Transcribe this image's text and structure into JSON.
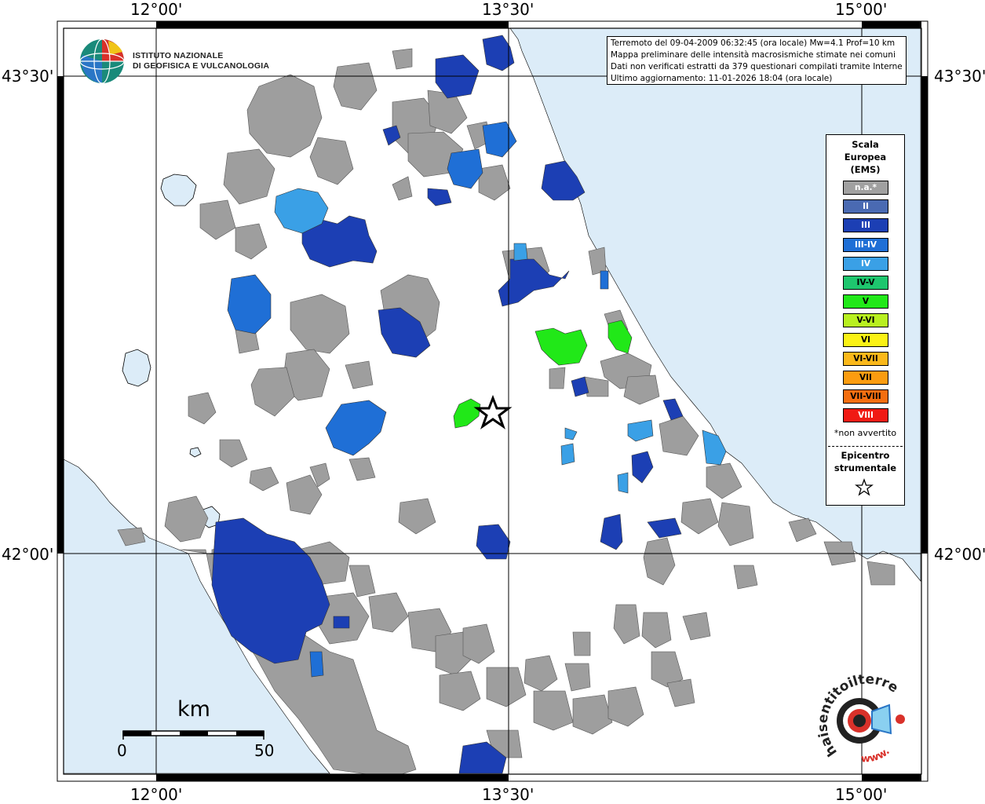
{
  "header_info": {
    "line1": "Terremoto del 09-04-2009 06:32:45 (ora locale) Mw=4.1 Prof=10 km",
    "line2": "Mappa preliminare delle intensità macrosismiche stimate nei comuni",
    "line3": "Dati non verificati estratti da 379 questionari compilati tramite Internet.",
    "line4": "Ultimo aggiornamento: 11-01-2026 18:04 (ora locale)"
  },
  "ingv_logo": {
    "line1": "ISTITUTO NAZIONALE",
    "line2": "DI GEOFISICA E VULCANOLOGIA"
  },
  "coordinates": {
    "lon_12": "12°00'",
    "lon_1330": "13°30'",
    "lon_15": "15°00'",
    "lat_4330": "43°30'",
    "lat_42": "42°00'"
  },
  "legend": {
    "title_line1": "Scala",
    "title_line2": "Europea",
    "title_line3": "(EMS)",
    "items": [
      {
        "label": "n.a.*",
        "color": "#a0a0a0",
        "text_color": "#ffffff"
      },
      {
        "label": "II",
        "color": "#4a6ab2",
        "text_color": "#ffffff"
      },
      {
        "label": "III",
        "color": "#1c3fb4",
        "text_color": "#ffffff"
      },
      {
        "label": "III-IV",
        "color": "#1f6fd6",
        "text_color": "#ffffff"
      },
      {
        "label": "IV",
        "color": "#3aa0e6",
        "text_color": "#ffffff"
      },
      {
        "label": "IV-V",
        "color": "#1ec66e",
        "text_color": "#000000"
      },
      {
        "label": "V",
        "color": "#21e818",
        "text_color": "#000000"
      },
      {
        "label": "V-VI",
        "color": "#b8f020",
        "text_color": "#000000"
      },
      {
        "label": "VI",
        "color": "#fbf215",
        "text_color": "#000000"
      },
      {
        "label": "VI-VII",
        "color": "#fbb81a",
        "text_color": "#000000"
      },
      {
        "label": "VII",
        "color": "#fb9c10",
        "text_color": "#000000"
      },
      {
        "label": "VII-VIII",
        "color": "#f56e10",
        "text_color": "#000000"
      },
      {
        "label": "VIII",
        "color": "#f01a14",
        "text_color": "#ffffff"
      }
    ],
    "note": "*non avvertito",
    "epicenter_line1": "Epicentro",
    "epicenter_line2": "strumentale"
  },
  "scale_bar": {
    "unit": "km",
    "start": "0",
    "end": "50"
  },
  "sentito_logo": {
    "text_main": "haisentitoilterremoto.it",
    "text_www": "www."
  },
  "colors": {
    "sea": "#dcecf8",
    "na_gray": "#9e9e9e",
    "border_black": "#000000"
  }
}
